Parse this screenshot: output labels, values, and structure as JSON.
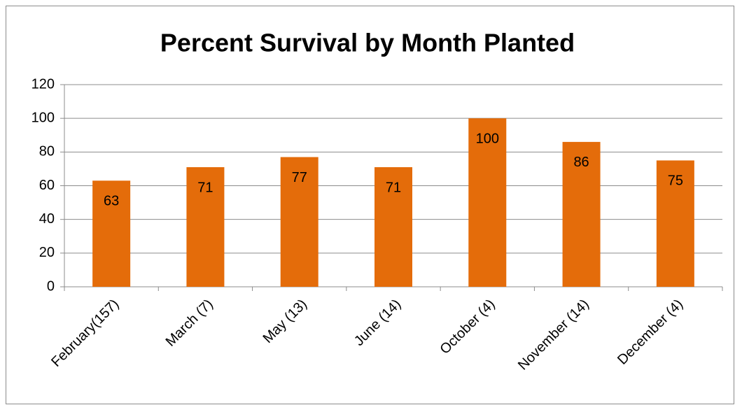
{
  "chart_data": {
    "type": "bar",
    "title": "Percent Survival by Month Planted",
    "categories": [
      "February(157)",
      "March (7)",
      "May (13)",
      "June (14)",
      "October (4)",
      "November (14)",
      "December (4)"
    ],
    "values": [
      63,
      71,
      77,
      71,
      100,
      86,
      75
    ],
    "color": "#e46c0a",
    "ylim": [
      0,
      120
    ],
    "yticks": [
      0,
      20,
      40,
      60,
      80,
      100,
      120
    ],
    "grid": true
  }
}
